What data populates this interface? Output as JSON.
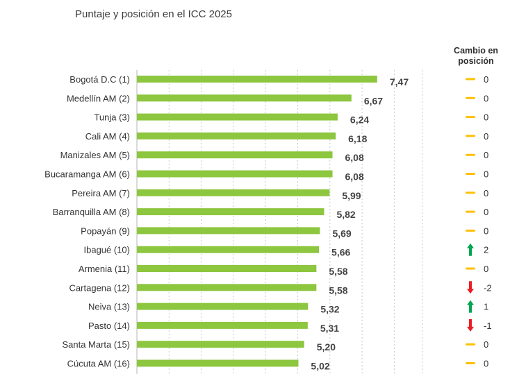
{
  "chart_data": {
    "type": "bar",
    "orientation": "horizontal",
    "title": "Puntaje y posición en el ICC 2025",
    "categories": [
      "Bogotá D.C (1)",
      "Medellín AM (2)",
      "Tunja (3)",
      "Cali AM (4)",
      "Manizales AM (5)",
      "Bucaramanga AM (6)",
      "Pereira AM (7)",
      "Barranquilla AM (8)",
      "Popayán (9)",
      "Ibagué (10)",
      "Armenia (11)",
      "Cartagena (12)",
      "Neiva (13)",
      "Pasto (14)",
      "Santa Marta (15)",
      "Cúcuta AM (16)"
    ],
    "values": [
      7.47,
      6.67,
      6.24,
      6.18,
      6.08,
      6.08,
      5.99,
      5.82,
      5.69,
      5.66,
      5.58,
      5.58,
      5.32,
      5.31,
      5.2,
      5.02
    ],
    "value_labels": [
      "7,47",
      "6,67",
      "6,24",
      "6,18",
      "6,08",
      "6,08",
      "5,99",
      "5,82",
      "5,69",
      "5,66",
      "5,58",
      "5,58",
      "5,32",
      "5,31",
      "5,20",
      "5,02"
    ],
    "xlim": [
      0,
      10
    ],
    "grid": "vertical dashed",
    "bar_color": "#8dc63f",
    "position_change": {
      "header": "Cambio en posición",
      "values": [
        0,
        0,
        0,
        0,
        0,
        0,
        0,
        0,
        0,
        2,
        0,
        -2,
        1,
        -1,
        0,
        0
      ],
      "labels": [
        "0",
        "0",
        "0",
        "0",
        "0",
        "0",
        "0",
        "0",
        "0",
        "2",
        "0",
        "-2",
        "1",
        "-1",
        "0",
        "0"
      ],
      "colors": {
        "no_change": "#ffc000",
        "up": "#00a651",
        "down": "#ed1c24"
      }
    }
  }
}
